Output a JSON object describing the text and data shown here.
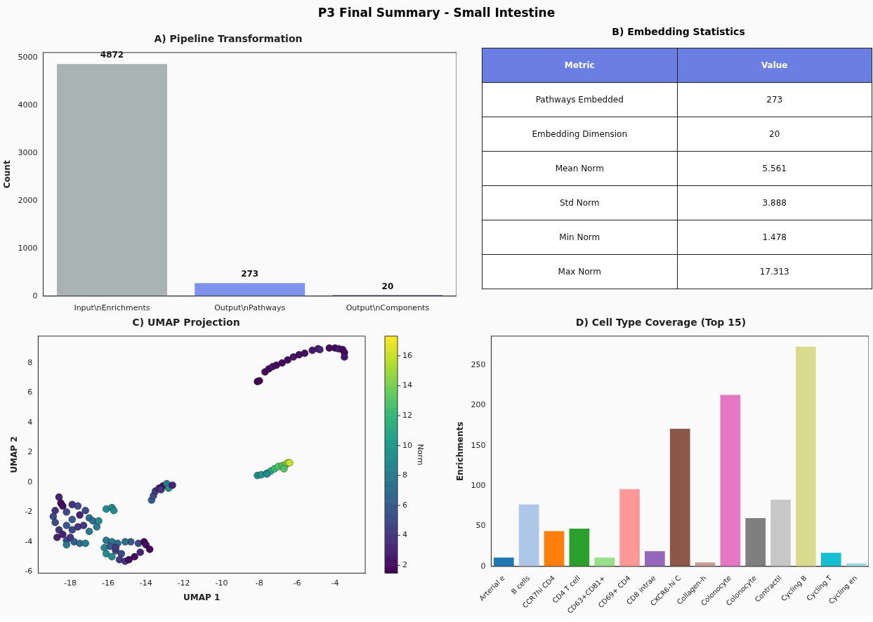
{
  "chart_data": [
    {
      "type": "bar",
      "title": "A) Pipeline Transformation",
      "ylabel": "Count",
      "annotations": [
        "P3 Final Summary - Small Intestine"
      ],
      "categories": [
        "Input\\nEnrichments",
        "Output\\nPathways",
        "Output\\nComponents"
      ],
      "values": [
        4872,
        273,
        20
      ],
      "colors": [
        "#a9b3b3",
        "#7f93ea",
        "#2c3e50"
      ],
      "ylim": [
        0,
        5115
      ],
      "yticks": [
        0,
        1000,
        2000,
        3000,
        4000,
        5000
      ],
      "data_labels": true,
      "grid": false,
      "legend": false
    },
    {
      "type": "other",
      "title": "B) Embedding Statistics",
      "annotations": [
        "Metric",
        "Value",
        "Pathways Embedded",
        "273",
        "Embedding Dimension",
        "20",
        "Mean Norm",
        "5.561",
        "Std Norm",
        "3.888",
        "Min Norm",
        "1.478",
        "Max Norm",
        "17.313"
      ]
    },
    {
      "type": "scatter",
      "title": "C) UMAP Projection",
      "xlabel": "UMAP 1",
      "ylabel": "UMAP 2",
      "clabel": "Norm",
      "marker": "circle",
      "grid": false,
      "legend": false,
      "xlim": [
        -19.7,
        -2.4
      ],
      "xticks": [
        -18,
        -16,
        -14,
        -12,
        -10,
        -8,
        -6,
        -4
      ],
      "ylim": [
        -6.1,
        9.8
      ],
      "yticks": [
        -6,
        -4,
        -2,
        0,
        2,
        4,
        6,
        8
      ],
      "clim": [
        1.478,
        17.313
      ],
      "cticks": [
        2,
        4,
        6,
        8,
        10,
        12,
        14,
        16
      ],
      "x": [
        -8.1,
        -8.0,
        -7.7,
        -7.5,
        -7.3,
        -7.1,
        -6.8,
        -6.5,
        -6.2,
        -5.9,
        -5.6,
        -5.2,
        -4.9,
        -4.8,
        -4.3,
        -4.0,
        -3.8,
        -3.6,
        -3.5,
        -3.5,
        -8.1,
        -7.9,
        -7.6,
        -7.4,
        -7.2,
        -7.0,
        -6.8,
        -6.6,
        -6.5,
        -6.4,
        -6.7,
        -7.6,
        -13.7,
        -13.6,
        -13.5,
        -13.3,
        -13.1,
        -12.9,
        -12.8,
        -12.6,
        -13.2,
        -18.6,
        -18.5,
        -18.4,
        -18.8,
        -18.9,
        -18.8,
        -18.6,
        -18.7,
        -18.4,
        -18.2,
        -18.2,
        -18.0,
        -17.8,
        -17.5,
        -17.2,
        -17.9,
        -17.6,
        -17.9,
        -17.5,
        -17.2,
        -17.3,
        -17.0,
        -16.8,
        -16.6,
        -16.5,
        -17.0,
        -17.9,
        -17.6,
        -18.2,
        -18.2,
        -16.1,
        -15.8,
        -15.7,
        -16.2,
        -16.1,
        -15.8,
        -16.1,
        -15.8,
        -15.5,
        -15.6,
        -15.3,
        -15.4,
        -15.1,
        -14.9,
        -14.8,
        -15.1,
        -14.4,
        -14.1,
        -14.0,
        -13.8,
        -14.3,
        -14.6,
        -15.9,
        -15.6
      ],
      "values": [
        6.75,
        6.8,
        7.4,
        7.6,
        7.75,
        7.85,
        8.0,
        8.2,
        8.4,
        8.55,
        8.65,
        8.85,
        8.95,
        8.9,
        9.0,
        9.0,
        8.95,
        8.9,
        8.7,
        8.4,
        0.45,
        0.5,
        0.6,
        0.75,
        0.9,
        1.05,
        1.1,
        1.2,
        1.3,
        1.3,
        0.9,
        0.55,
        -1.2,
        -0.9,
        -0.6,
        -0.4,
        -0.25,
        -0.1,
        -0.4,
        -0.2,
        -0.5,
        -1.0,
        -1.4,
        -1.6,
        -1.9,
        -2.3,
        -2.7,
        -3.2,
        -3.7,
        -3.5,
        -3.9,
        -4.2,
        -3.7,
        -4.0,
        -4.1,
        -4.1,
        -3.2,
        -3.0,
        -2.5,
        -2.2,
        -1.9,
        -2.9,
        -2.4,
        -2.6,
        -3.0,
        -2.6,
        -3.3,
        -1.5,
        -1.6,
        -2.0,
        -2.9,
        -1.8,
        -1.7,
        -1.9,
        -4.4,
        -4.8,
        -5.0,
        -3.9,
        -4.0,
        -4.1,
        -4.6,
        -4.8,
        -5.2,
        -5.3,
        -5.2,
        -4.0,
        -4.0,
        -4.1,
        -4.0,
        -4.2,
        -4.5,
        -4.7,
        -5.0,
        -4.3,
        -4.4
      ],
      "cvalues": [
        1.5,
        1.6,
        2,
        2,
        2.5,
        2,
        2,
        2,
        2.5,
        2,
        2,
        2.5,
        3,
        3,
        2,
        2,
        2.5,
        2,
        2,
        2.5,
        9,
        9.5,
        10,
        11,
        12,
        13,
        13,
        14,
        15,
        16,
        13,
        9,
        6,
        5,
        4,
        3,
        2,
        8,
        9,
        3,
        4,
        3,
        2,
        2,
        4,
        5,
        5,
        4,
        3,
        3,
        5,
        8,
        4,
        6,
        7,
        8,
        5,
        4,
        6,
        3,
        5,
        4,
        7,
        7,
        8,
        9,
        8,
        4,
        5,
        5,
        6,
        9,
        9,
        9,
        9,
        9,
        9,
        8,
        8,
        7,
        5,
        5,
        4,
        4,
        2,
        6,
        7,
        5,
        2,
        2,
        1.8,
        3,
        2,
        6,
        4
      ]
    },
    {
      "type": "bar",
      "title": "D) Cell Type Coverage (Top 15)",
      "ylabel": "Enrichments",
      "grid": false,
      "legend": false,
      "categories": [
        "Arterial e",
        "B cells",
        "CCR7hi CD4",
        "CD4 T cell",
        "CD63+CD81+",
        "CD69+ CD4",
        "CD8 intrae",
        "CXCR6-hi C",
        "Collagen-h",
        "Colonocyte",
        "Colonocyte",
        "Contractil",
        "Cycling B",
        "Cycling T",
        "Cycling en"
      ],
      "values": [
        11,
        77,
        44,
        47,
        11,
        96,
        19,
        171,
        5,
        213,
        60,
        83,
        273,
        17,
        4
      ],
      "colors": [
        "#1f77b4",
        "#aec7e8",
        "#ff7f0e",
        "#2ca02c",
        "#98df8a",
        "#ff9896",
        "#9467bd",
        "#8c564b",
        "#c49c94",
        "#e377c2",
        "#7f7f7f",
        "#c7c7c7",
        "#dbdb8d",
        "#17becf",
        "#9edae5"
      ],
      "ylim": [
        0,
        286
      ],
      "yticks": [
        0,
        50,
        100,
        150,
        200,
        250
      ]
    }
  ]
}
